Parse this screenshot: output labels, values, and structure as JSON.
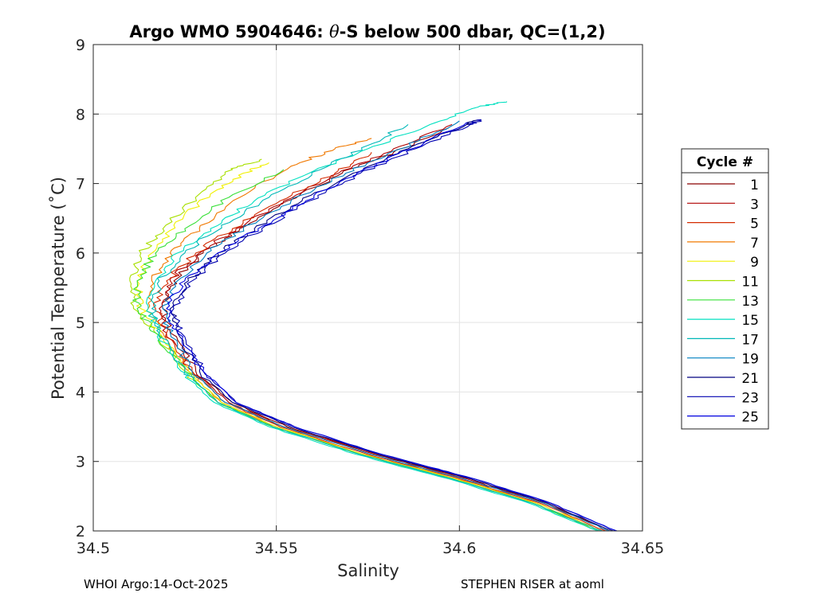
{
  "chart_data": {
    "type": "line",
    "title": "Argo WMO 5904646: θ-S below 500 dbar,  QC=(1,2)",
    "title_parts": {
      "prefix": "Argo WMO 5904646: ",
      "theta": "θ",
      "suffix": "-S below 500 dbar,  QC=(1,2)"
    },
    "xlabel": "Salinity",
    "ylabel": "Potential Temperature (˚C)",
    "xlim": [
      34.5,
      34.65
    ],
    "ylim": [
      2,
      9
    ],
    "xticks": [
      "34.5",
      "34.55",
      "34.6",
      "34.65"
    ],
    "yticks": [
      "2",
      "3",
      "4",
      "5",
      "6",
      "7",
      "8",
      "9"
    ],
    "grid": true,
    "legend": {
      "title": "Cycle #",
      "placement": "right",
      "entries": [
        "1",
        "3",
        "5",
        "7",
        "9",
        "11",
        "13",
        "15",
        "17",
        "19",
        "21",
        "23",
        "25"
      ]
    },
    "series": [
      {
        "name": "1",
        "color": "#8b0000",
        "points": [
          [
            34.641,
            2.0
          ],
          [
            34.624,
            2.4
          ],
          [
            34.603,
            2.75
          ],
          [
            34.578,
            3.1
          ],
          [
            34.553,
            3.5
          ],
          [
            34.538,
            3.85
          ],
          [
            34.528,
            4.3
          ],
          [
            34.521,
            4.85
          ],
          [
            34.519,
            5.2
          ],
          [
            34.522,
            5.6
          ],
          [
            34.53,
            6.0
          ],
          [
            34.54,
            6.35
          ],
          [
            34.553,
            6.75
          ],
          [
            34.568,
            7.15
          ],
          [
            34.582,
            7.45
          ],
          [
            34.597,
            7.8
          ]
        ]
      },
      {
        "name": "3",
        "color": "#b00000",
        "points": [
          [
            34.641,
            2.0
          ],
          [
            34.623,
            2.4
          ],
          [
            34.602,
            2.75
          ],
          [
            34.577,
            3.1
          ],
          [
            34.552,
            3.5
          ],
          [
            34.537,
            3.85
          ],
          [
            34.527,
            4.3
          ],
          [
            34.52,
            4.85
          ],
          [
            34.518,
            5.2
          ],
          [
            34.521,
            5.6
          ],
          [
            34.529,
            6.0
          ],
          [
            34.539,
            6.35
          ],
          [
            34.552,
            6.75
          ],
          [
            34.567,
            7.15
          ],
          [
            34.582,
            7.5
          ],
          [
            34.598,
            7.85
          ]
        ]
      },
      {
        "name": "5",
        "color": "#d42a00",
        "points": [
          [
            34.64,
            2.0
          ],
          [
            34.622,
            2.4
          ],
          [
            34.6,
            2.75
          ],
          [
            34.575,
            3.1
          ],
          [
            34.551,
            3.5
          ],
          [
            34.536,
            3.85
          ],
          [
            34.527,
            4.3
          ],
          [
            34.52,
            4.85
          ],
          [
            34.517,
            5.2
          ],
          [
            34.52,
            5.6
          ],
          [
            34.528,
            6.0
          ],
          [
            34.538,
            6.35
          ],
          [
            34.551,
            6.75
          ],
          [
            34.566,
            7.15
          ],
          [
            34.576,
            7.45
          ]
        ]
      },
      {
        "name": "7",
        "color": "#f07800",
        "points": [
          [
            34.639,
            2.0
          ],
          [
            34.621,
            2.4
          ],
          [
            34.599,
            2.75
          ],
          [
            34.574,
            3.1
          ],
          [
            34.55,
            3.5
          ],
          [
            34.535,
            3.85
          ],
          [
            34.526,
            4.3
          ],
          [
            34.519,
            4.85
          ],
          [
            34.515,
            5.2
          ],
          [
            34.516,
            5.6
          ],
          [
            34.521,
            6.0
          ],
          [
            34.529,
            6.35
          ],
          [
            34.54,
            6.8
          ],
          [
            34.554,
            7.25
          ],
          [
            34.566,
            7.5
          ],
          [
            34.576,
            7.65
          ]
        ]
      },
      {
        "name": "9",
        "color": "#f0f000",
        "points": [
          [
            34.639,
            2.0
          ],
          [
            34.621,
            2.4
          ],
          [
            34.599,
            2.75
          ],
          [
            34.574,
            3.1
          ],
          [
            34.55,
            3.5
          ],
          [
            34.535,
            3.85
          ],
          [
            34.526,
            4.3
          ],
          [
            34.518,
            4.85
          ],
          [
            34.513,
            5.2
          ],
          [
            34.512,
            5.6
          ],
          [
            34.516,
            6.0
          ],
          [
            34.522,
            6.4
          ],
          [
            34.532,
            6.85
          ],
          [
            34.541,
            7.15
          ],
          [
            34.548,
            7.3
          ]
        ]
      },
      {
        "name": "11",
        "color": "#a8e000",
        "points": [
          [
            34.638,
            2.0
          ],
          [
            34.62,
            2.4
          ],
          [
            34.598,
            2.75
          ],
          [
            34.573,
            3.1
          ],
          [
            34.549,
            3.5
          ],
          [
            34.534,
            3.85
          ],
          [
            34.525,
            4.3
          ],
          [
            34.517,
            4.85
          ],
          [
            34.511,
            5.2
          ],
          [
            34.51,
            5.6
          ],
          [
            34.513,
            6.0
          ],
          [
            34.519,
            6.35
          ],
          [
            34.529,
            6.85
          ],
          [
            34.538,
            7.2
          ],
          [
            34.546,
            7.35
          ]
        ]
      },
      {
        "name": "13",
        "color": "#38e038",
        "points": [
          [
            34.638,
            2.0
          ],
          [
            34.62,
            2.4
          ],
          [
            34.598,
            2.75
          ],
          [
            34.573,
            3.1
          ],
          [
            34.549,
            3.5
          ],
          [
            34.534,
            3.85
          ],
          [
            34.525,
            4.3
          ],
          [
            34.517,
            4.85
          ],
          [
            34.512,
            5.2
          ],
          [
            34.512,
            5.6
          ],
          [
            34.517,
            6.0
          ],
          [
            34.525,
            6.35
          ],
          [
            34.537,
            6.8
          ],
          [
            34.552,
            7.2
          ]
        ]
      },
      {
        "name": "15",
        "color": "#00e0c0",
        "points": [
          [
            34.638,
            2.0
          ],
          [
            34.619,
            2.4
          ],
          [
            34.597,
            2.75
          ],
          [
            34.572,
            3.1
          ],
          [
            34.548,
            3.5
          ],
          [
            34.533,
            3.85
          ],
          [
            34.524,
            4.3
          ],
          [
            34.518,
            4.85
          ],
          [
            34.515,
            5.2
          ],
          [
            34.517,
            5.6
          ],
          [
            34.523,
            6.0
          ],
          [
            34.532,
            6.35
          ],
          [
            34.544,
            6.75
          ],
          [
            34.559,
            7.15
          ],
          [
            34.575,
            7.5
          ],
          [
            34.592,
            7.85
          ],
          [
            34.605,
            8.1
          ],
          [
            34.613,
            8.18
          ]
        ]
      },
      {
        "name": "17",
        "color": "#00b8b8",
        "points": [
          [
            34.639,
            2.0
          ],
          [
            34.62,
            2.4
          ],
          [
            34.598,
            2.75
          ],
          [
            34.573,
            3.1
          ],
          [
            34.549,
            3.5
          ],
          [
            34.534,
            3.85
          ],
          [
            34.525,
            4.3
          ],
          [
            34.518,
            4.85
          ],
          [
            34.516,
            5.2
          ],
          [
            34.518,
            5.6
          ],
          [
            34.525,
            6.0
          ],
          [
            34.535,
            6.4
          ],
          [
            34.548,
            6.8
          ],
          [
            34.562,
            7.2
          ],
          [
            34.575,
            7.55
          ],
          [
            34.586,
            7.85
          ]
        ]
      },
      {
        "name": "19",
        "color": "#0080c0",
        "points": [
          [
            34.641,
            2.0
          ],
          [
            34.623,
            2.4
          ],
          [
            34.601,
            2.75
          ],
          [
            34.576,
            3.1
          ],
          [
            34.552,
            3.5
          ],
          [
            34.536,
            3.85
          ],
          [
            34.527,
            4.3
          ],
          [
            34.521,
            4.85
          ],
          [
            34.519,
            5.2
          ],
          [
            34.523,
            5.6
          ],
          [
            34.531,
            6.0
          ],
          [
            34.541,
            6.35
          ],
          [
            34.554,
            6.75
          ],
          [
            34.569,
            7.15
          ],
          [
            34.584,
            7.5
          ],
          [
            34.6,
            7.9
          ]
        ]
      },
      {
        "name": "21",
        "color": "#000080",
        "points": [
          [
            34.642,
            2.0
          ],
          [
            34.624,
            2.4
          ],
          [
            34.603,
            2.75
          ],
          [
            34.578,
            3.1
          ],
          [
            34.554,
            3.5
          ],
          [
            34.538,
            3.85
          ],
          [
            34.529,
            4.3
          ],
          [
            34.523,
            4.85
          ],
          [
            34.521,
            5.2
          ],
          [
            34.526,
            5.6
          ],
          [
            34.534,
            6.0
          ],
          [
            34.544,
            6.35
          ],
          [
            34.557,
            6.75
          ],
          [
            34.571,
            7.15
          ],
          [
            34.586,
            7.5
          ],
          [
            34.602,
            7.85
          ],
          [
            34.605,
            7.92
          ]
        ]
      },
      {
        "name": "23",
        "color": "#0000b0",
        "points": [
          [
            34.643,
            2.0
          ],
          [
            34.625,
            2.4
          ],
          [
            34.604,
            2.75
          ],
          [
            34.579,
            3.1
          ],
          [
            34.555,
            3.5
          ],
          [
            34.539,
            3.85
          ],
          [
            34.53,
            4.3
          ],
          [
            34.524,
            4.85
          ],
          [
            34.522,
            5.2
          ],
          [
            34.527,
            5.6
          ],
          [
            34.536,
            6.0
          ],
          [
            34.546,
            6.35
          ],
          [
            34.559,
            6.75
          ],
          [
            34.573,
            7.15
          ],
          [
            34.588,
            7.5
          ],
          [
            34.603,
            7.85
          ],
          [
            34.606,
            7.92
          ]
        ]
      },
      {
        "name": "25",
        "color": "#0000e0",
        "points": [
          [
            34.643,
            2.0
          ],
          [
            34.625,
            2.4
          ],
          [
            34.604,
            2.75
          ],
          [
            34.579,
            3.1
          ],
          [
            34.555,
            3.5
          ],
          [
            34.539,
            3.85
          ],
          [
            34.53,
            4.3
          ],
          [
            34.523,
            4.85
          ],
          [
            34.52,
            5.2
          ],
          [
            34.525,
            5.6
          ],
          [
            34.534,
            6.0
          ],
          [
            34.545,
            6.35
          ],
          [
            34.558,
            6.75
          ],
          [
            34.572,
            7.15
          ],
          [
            34.587,
            7.5
          ],
          [
            34.602,
            7.88
          ]
        ]
      }
    ]
  },
  "footer": {
    "left": "WHOI Argo:14-Oct-2025",
    "right": "STEPHEN RISER at aoml"
  }
}
